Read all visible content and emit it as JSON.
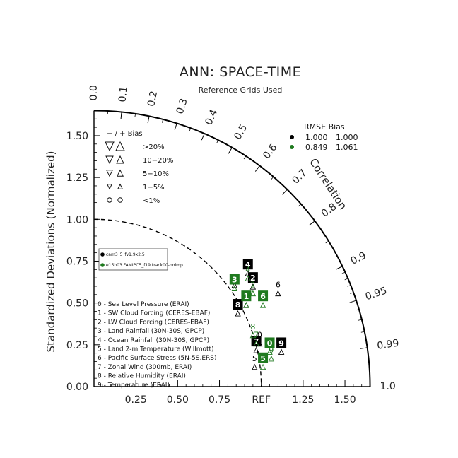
{
  "chart_data": {
    "type": "taylor-diagram",
    "title": "ANN: SPACE-TIME",
    "subtitle": "Reference Grids Used",
    "ylabel": "Standardized Deviations (Normalized)",
    "corr_label": "Correlation",
    "ref_label": "REF",
    "std_range": [
      0,
      1.65
    ],
    "std_ticks": [
      "0.00",
      "0.25",
      "0.50",
      "0.75",
      "1.00",
      "1.25",
      "1.50"
    ],
    "x_ticks": [
      "0.25",
      "0.50",
      "0.75",
      "REF",
      "1.25",
      "1.50"
    ],
    "corr_ticks": [
      {
        "value": 0.0,
        "label": "0.0"
      },
      {
        "value": 0.1,
        "label": "0.1"
      },
      {
        "value": 0.2,
        "label": "0.2"
      },
      {
        "value": 0.3,
        "label": "0.3"
      },
      {
        "value": 0.4,
        "label": "0.4"
      },
      {
        "value": 0.5,
        "label": "0.5"
      },
      {
        "value": 0.6,
        "label": "0.6"
      },
      {
        "value": 0.7,
        "label": "0.7"
      },
      {
        "value": 0.8,
        "label": "0.8"
      },
      {
        "value": 0.9,
        "label": "0.9"
      },
      {
        "value": 0.95,
        "label": "0.95"
      },
      {
        "value": 0.99,
        "label": "0.99"
      },
      {
        "value": 1.0,
        "label": "1.0"
      }
    ],
    "bias_legend": {
      "header": "−  /  +      Bias",
      "rows": [
        ">20%",
        "10−20%",
        "5−10%",
        "1−5%",
        "<1%"
      ]
    },
    "rmse_legend": {
      "header": "RMSE  Bias",
      "rows": [
        {
          "color": "#000000",
          "rmse": "1.000",
          "bias": "1.000"
        },
        {
          "color": "#1f7a1f",
          "rmse": "0.849",
          "bias": "1.061"
        }
      ]
    },
    "case_legend": [
      "cam3_5_fv1.9x2.5",
      "e15b03.FAMIPC5_f19.track00-noimp"
    ],
    "variables": [
      "0 - Sea Level Pressure (ERAI)",
      "1 - SW Cloud Forcing (CERES-EBAF)",
      "2 - LW Cloud Forcing (CERES-EBAF)",
      "3 - Land Rainfall (30N-30S, GPCP)",
      "4 - Ocean Rainfall (30N-30S, GPCP)",
      "5 - Land 2-m Temperature (Willmott)",
      "6 - Pacific Surface Stress (5N-5S,ERS)",
      "7 - Zonal Wind (300mb, ERAI)",
      "8 - Relative Humidity (ERAI)",
      "9 - Temperature (ERAI)"
    ],
    "series": [
      {
        "color": "#000000",
        "points": [
          {
            "id": "0",
            "x": 0.99,
            "y": 0.31
          },
          {
            "id": "1",
            "x": 0.91,
            "y": 0.54
          },
          {
            "id": "2",
            "x": 0.95,
            "y": 0.65
          },
          {
            "id": "3",
            "x": 0.84,
            "y": 0.66
          },
          {
            "id": "4",
            "x": 0.92,
            "y": 0.73
          },
          {
            "id": "5",
            "x": 0.96,
            "y": 0.17
          },
          {
            "id": "6",
            "x": 1.1,
            "y": 0.61
          },
          {
            "id": "7",
            "x": 0.97,
            "y": 0.27
          },
          {
            "id": "8",
            "x": 0.86,
            "y": 0.49
          },
          {
            "id": "9",
            "x": 1.12,
            "y": 0.26
          }
        ]
      },
      {
        "color": "#1f7a1f",
        "points": [
          {
            "id": "0",
            "x": 1.05,
            "y": 0.26
          },
          {
            "id": "1",
            "x": 0.91,
            "y": 0.54
          },
          {
            "id": "2",
            "x": 0.95,
            "y": 0.61
          },
          {
            "id": "3",
            "x": 0.84,
            "y": 0.64
          },
          {
            "id": "4",
            "x": 0.92,
            "y": 0.7
          },
          {
            "id": "5",
            "x": 1.01,
            "y": 0.17
          },
          {
            "id": "6",
            "x": 1.01,
            "y": 0.54
          },
          {
            "id": "7",
            "x": 0.97,
            "y": 0.31
          },
          {
            "id": "8",
            "x": 0.95,
            "y": 0.36
          },
          {
            "id": "9",
            "x": 1.06,
            "y": 0.22
          }
        ]
      }
    ]
  }
}
